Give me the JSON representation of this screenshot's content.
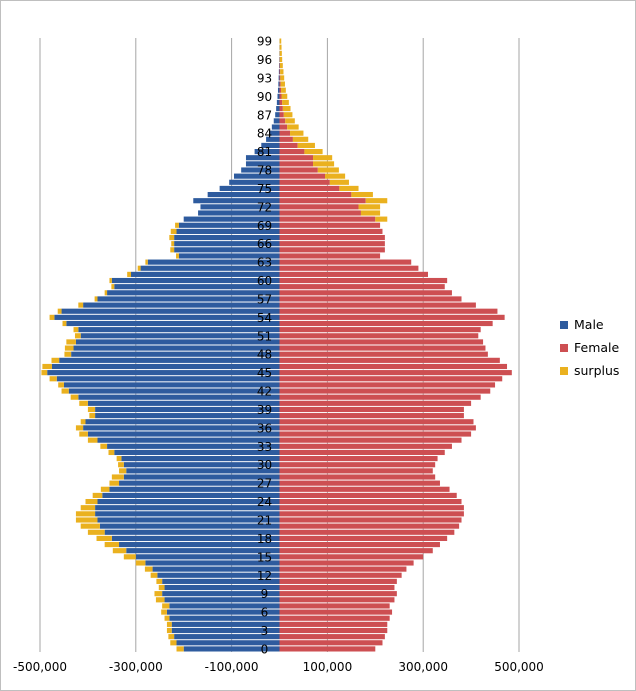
{
  "chart_data": {
    "type": "bar",
    "orientation": "horizontal",
    "stacked": true,
    "title": "",
    "xlabel": "",
    "ylabel": "",
    "xlim": [
      -500000,
      500000
    ],
    "x_ticks": [
      -500000,
      -300000,
      -100000,
      100000,
      300000,
      500000
    ],
    "x_tick_labels": [
      "-500,000",
      "-300,000",
      "-100,000",
      "100,000",
      "300,000",
      "500,000"
    ],
    "y_tick_labels": [
      "0",
      "3",
      "6",
      "9",
      "12",
      "15",
      "18",
      "21",
      "24",
      "27",
      "30",
      "33",
      "36",
      "39",
      "42",
      "45",
      "48",
      "51",
      "54",
      "57",
      "60",
      "63",
      "66",
      "69",
      "72",
      "75",
      "78",
      "81",
      "84",
      "87",
      "90",
      "93",
      "96",
      "99"
    ],
    "grid": "vertical",
    "legend_position": "right",
    "colors": {
      "male": "#2e5b9e",
      "female": "#cd4f52",
      "surplus": "#eab11f"
    },
    "series": [
      {
        "name": "Male",
        "side": "left",
        "x": [
          -200000,
          -215000,
          -220000,
          -225000,
          -225000,
          -230000,
          -235000,
          -230000,
          -240000,
          -245000,
          -240000,
          -245000,
          -255000,
          -265000,
          -280000,
          -300000,
          -320000,
          -335000,
          -350000,
          -365000,
          -375000,
          -380000,
          -385000,
          -385000,
          -380000,
          -370000,
          -355000,
          -335000,
          -325000,
          -320000,
          -325000,
          -330000,
          -345000,
          -360000,
          -380000,
          -400000,
          -410000,
          -405000,
          -385000,
          -385000,
          -400000,
          -420000,
          -440000,
          -450000,
          -465000,
          -485000,
          -475000,
          -460000,
          -435000,
          -430000,
          -425000,
          -415000,
          -420000,
          -445000,
          -470000,
          -455000,
          -410000,
          -380000,
          -360000,
          -345000,
          -350000,
          -310000,
          -290000,
          -275000,
          -210000,
          -220000,
          -220000,
          -220000,
          -215000,
          -210000,
          -200000,
          -170000,
          -165000,
          -180000,
          -150000,
          -125000,
          -105000,
          -95000,
          -80000,
          -70000,
          -70000,
          -52000,
          -38000,
          -28000,
          -22000,
          -16000,
          -12000,
          -9000,
          -7000,
          -5500,
          -4200,
          -3200,
          -2400,
          -1800,
          -1300,
          -900,
          -600,
          -400,
          -250,
          -150
        ]
      },
      {
        "name": "Female",
        "side": "right",
        "x": [
          200000,
          215000,
          220000,
          225000,
          225000,
          230000,
          235000,
          230000,
          240000,
          245000,
          240000,
          245000,
          255000,
          265000,
          280000,
          300000,
          320000,
          335000,
          350000,
          365000,
          375000,
          380000,
          385000,
          385000,
          380000,
          370000,
          355000,
          335000,
          325000,
          320000,
          325000,
          330000,
          345000,
          360000,
          380000,
          400000,
          410000,
          405000,
          385000,
          385000,
          400000,
          420000,
          440000,
          450000,
          465000,
          485000,
          475000,
          460000,
          435000,
          430000,
          425000,
          415000,
          420000,
          445000,
          470000,
          455000,
          410000,
          380000,
          360000,
          345000,
          350000,
          310000,
          290000,
          275000,
          210000,
          220000,
          220000,
          220000,
          215000,
          210000,
          200000,
          170000,
          165000,
          180000,
          150000,
          125000,
          105000,
          95000,
          80000,
          70000,
          70000,
          52000,
          38000,
          28000,
          22000,
          16000,
          12000,
          9000,
          7000,
          5500,
          4200,
          3200,
          2400,
          1800,
          1300,
          900,
          600,
          400,
          250,
          150
        ]
      },
      {
        "name": "surplus",
        "x": [
          -15000,
          -13000,
          -12000,
          -10000,
          -10000,
          -10000,
          -12000,
          -15000,
          -18000,
          -16000,
          -12000,
          -12000,
          -14000,
          -16000,
          -20000,
          -25000,
          -28000,
          -30000,
          -32000,
          -35000,
          -40000,
          -45000,
          -40000,
          -30000,
          -25000,
          -20000,
          -18000,
          -20000,
          -25000,
          -15000,
          -12000,
          -10000,
          -12000,
          -14000,
          -20000,
          -18000,
          -15000,
          -10000,
          -12000,
          -15000,
          -18000,
          -16000,
          -15000,
          -12000,
          -15000,
          -12000,
          -20000,
          -16000,
          -14000,
          -18000,
          -20000,
          -12000,
          -10000,
          -8000,
          -10000,
          -8000,
          -10000,
          -6000,
          -5000,
          -6000,
          -5000,
          -8000,
          -6000,
          -5000,
          -6000,
          -8000,
          -6000,
          -10000,
          -12000,
          -8000,
          25000,
          40000,
          45000,
          45000,
          45000,
          40000,
          40000,
          42000,
          44000,
          44000,
          40000,
          38000,
          36000,
          32000,
          28000,
          24000,
          20000,
          18000,
          16000,
          14000,
          12000,
          10000,
          9000,
          8000,
          7000,
          6000,
          5000,
          4500,
          4000,
          3500
        ]
      }
    ]
  }
}
